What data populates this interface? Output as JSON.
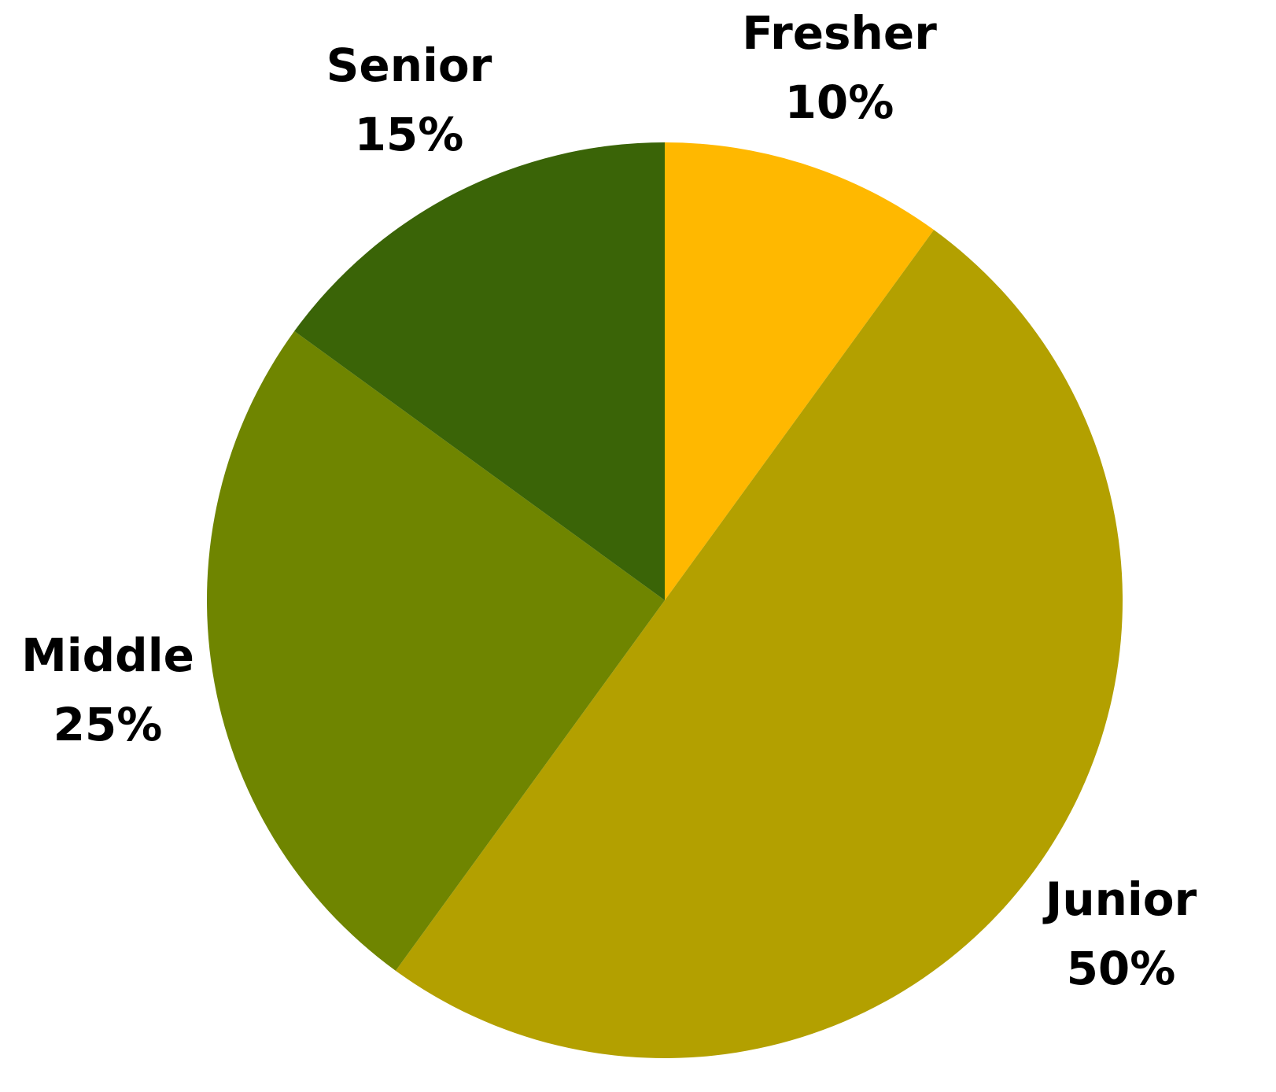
{
  "chart_data": {
    "type": "pie",
    "title": "",
    "start_angle_deg": 0,
    "direction": "clockwise",
    "slices": [
      {
        "label": "Fresher",
        "value": 10,
        "value_label": "10%",
        "color": "#FFB800"
      },
      {
        "label": "Junior",
        "value": 50,
        "value_label": "50%",
        "color": "#B3A000"
      },
      {
        "label": "Middle",
        "value": 25,
        "value_label": "25%",
        "color": "#6F8500"
      },
      {
        "label": "Senior",
        "value": 15,
        "value_label": "15%",
        "color": "#3A6407"
      }
    ]
  }
}
